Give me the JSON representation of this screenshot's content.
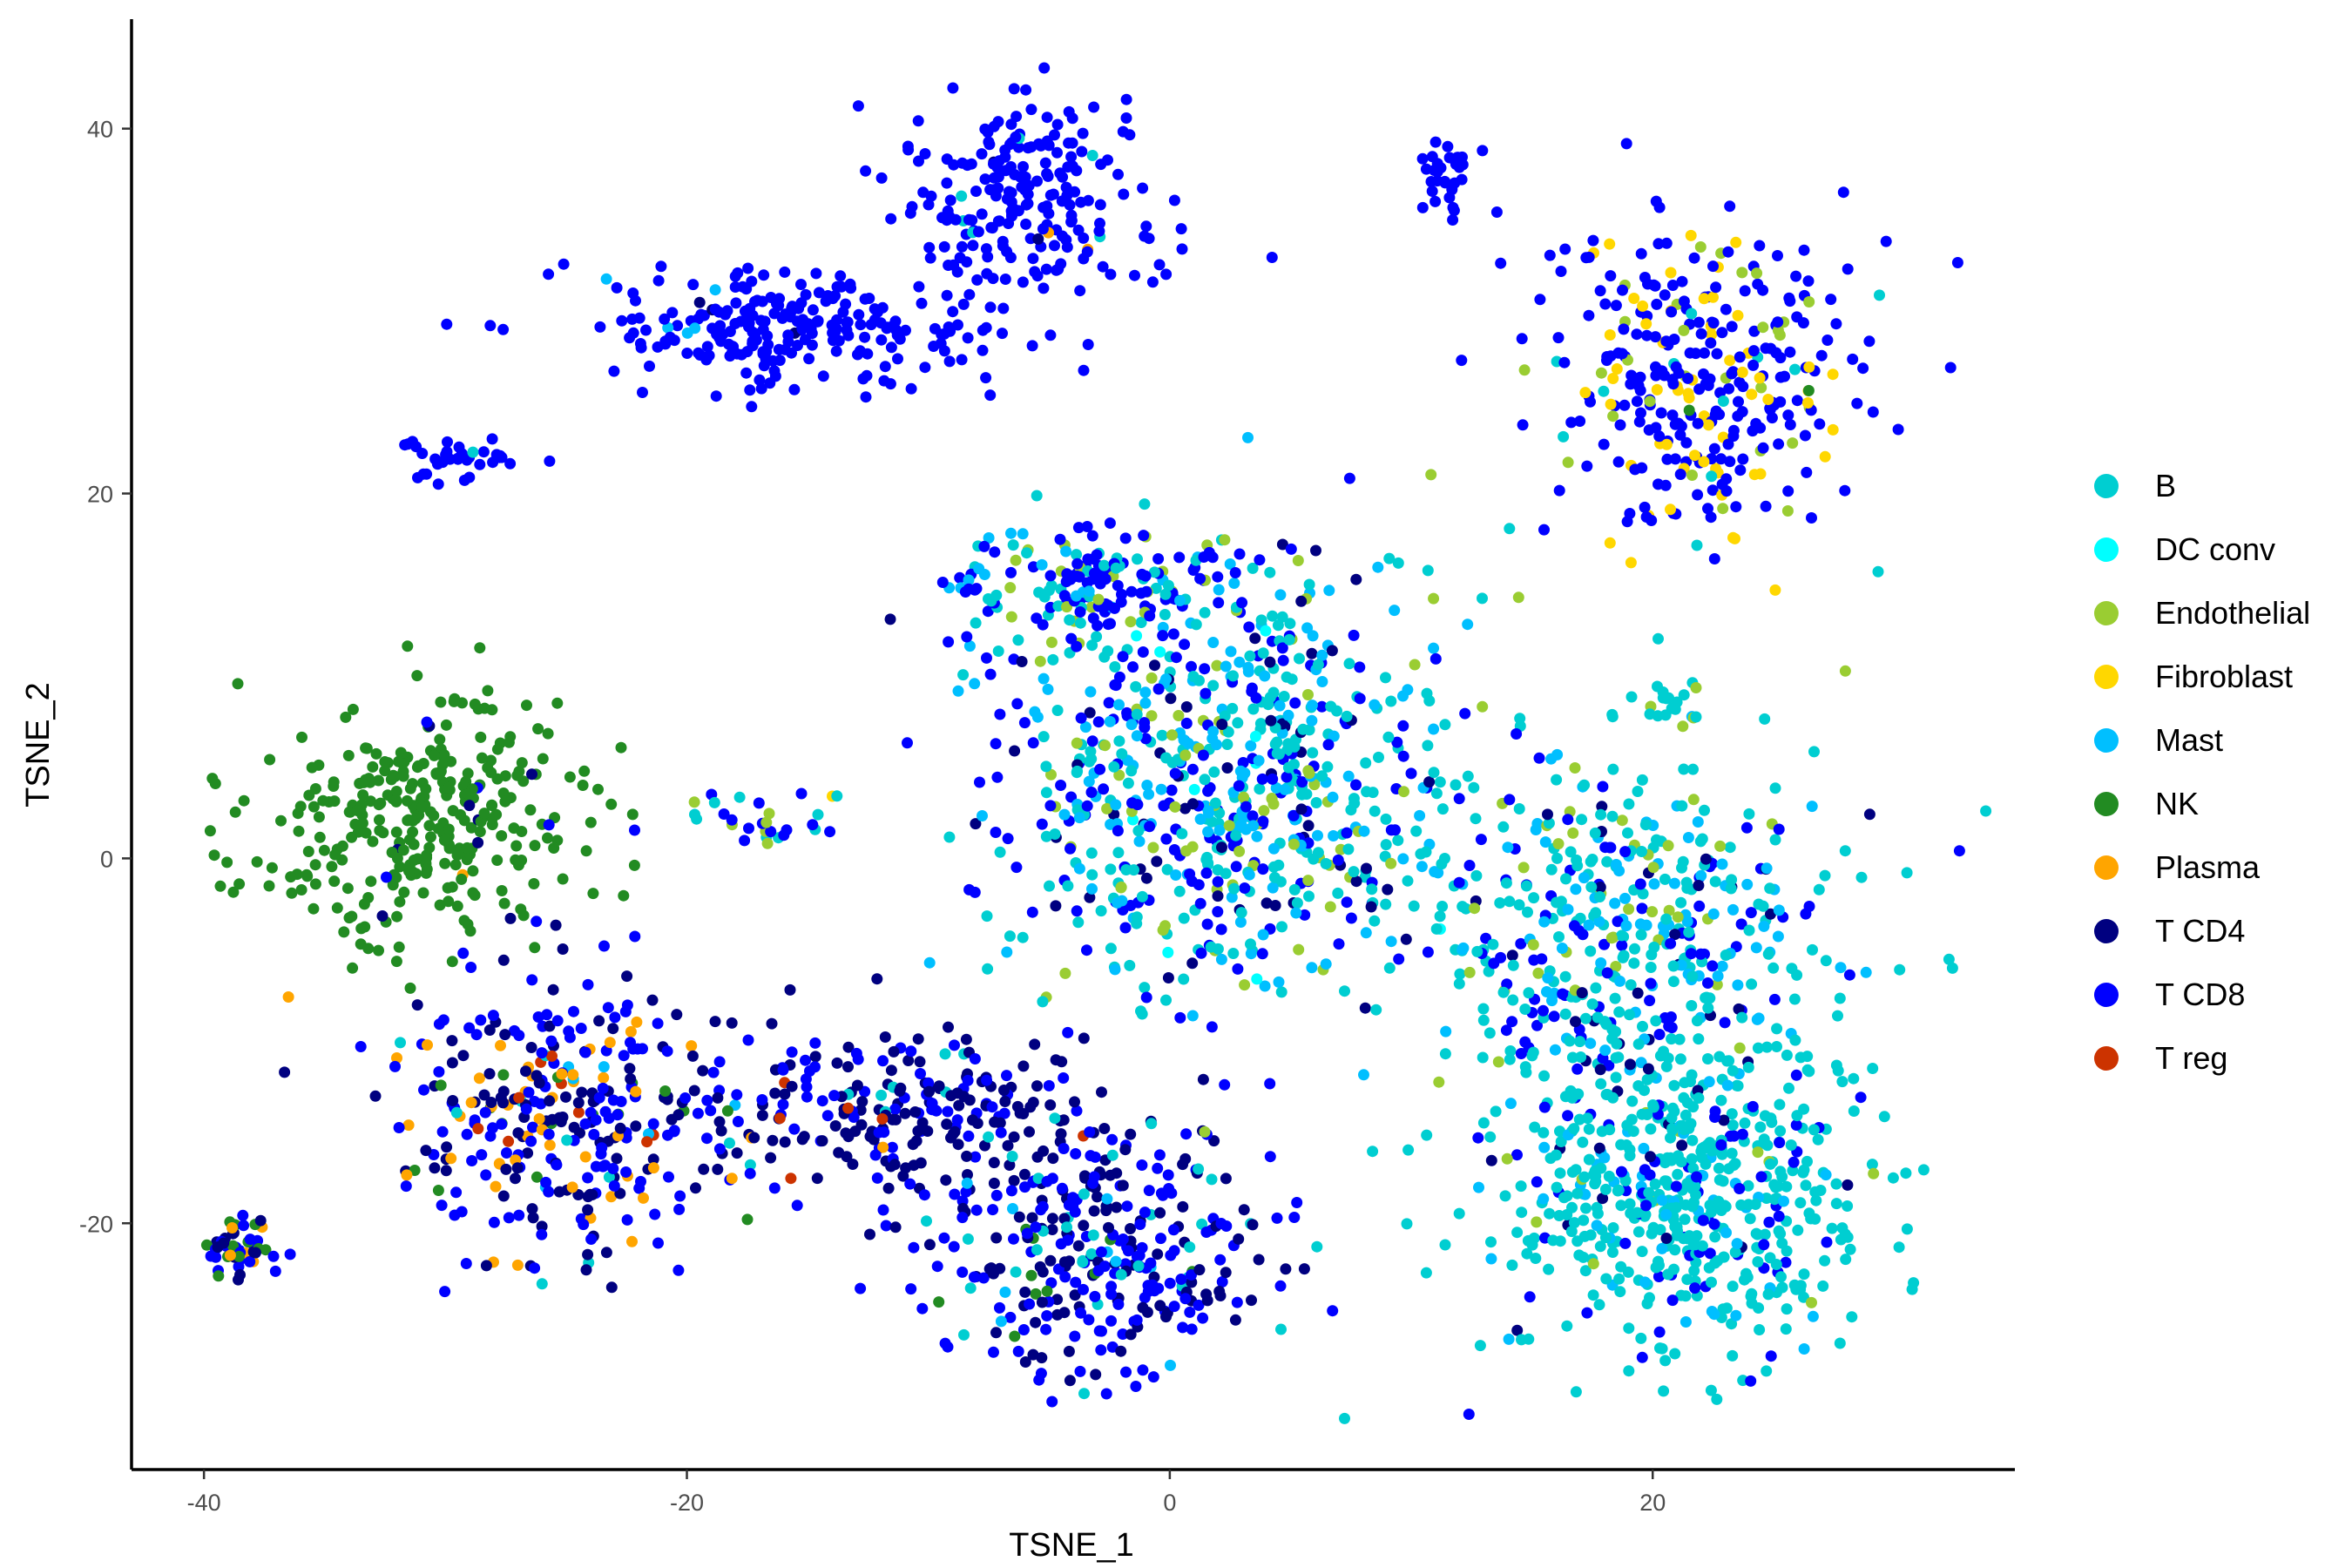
{
  "chart_data": {
    "type": "scatter",
    "title": "",
    "xlabel": "TSNE_1",
    "ylabel": "TSNE_2",
    "xlim": [
      -43,
      35
    ],
    "ylim": [
      -33.5,
      46
    ],
    "x_ticks": [
      -40,
      -20,
      0,
      20
    ],
    "y_ticks": [
      -20,
      0,
      20,
      40
    ],
    "x_tick_labels": [
      "-40",
      "-20",
      "0",
      "20"
    ],
    "y_tick_labels": [
      "-20",
      "0",
      "20",
      "40"
    ],
    "grid": false,
    "legend_position": "right",
    "legend": [
      {
        "name": "B",
        "color": "#00CED1"
      },
      {
        "name": "DC conv",
        "color": "#00FFFF"
      },
      {
        "name": "Endothelial",
        "color": "#9ACD32"
      },
      {
        "name": "Fibroblast",
        "color": "#FFD700"
      },
      {
        "name": "Mast",
        "color": "#00BFFF"
      },
      {
        "name": "NK",
        "color": "#228B22"
      },
      {
        "name": "Plasma",
        "color": "#FFA500"
      },
      {
        "name": "T CD4",
        "color": "#000080"
      },
      {
        "name": "T CD8",
        "color": "#0000FF"
      },
      {
        "name": "T reg",
        "color": "#CC3300"
      }
    ],
    "clusters": [
      {
        "x": -6,
        "y": 36,
        "sx": 2.5,
        "sy": 3,
        "n": 220,
        "mix": {
          "T CD8": 0.95,
          "T CD4": 0.02,
          "B": 0.02,
          "Plasma": 0.01
        }
      },
      {
        "x": -16,
        "y": 29,
        "sx": 4,
        "sy": 1.6,
        "n": 240,
        "mix": {
          "T CD8": 0.96,
          "T CD4": 0.02,
          "Mast": 0.02
        }
      },
      {
        "x": -29.5,
        "y": 22,
        "sx": 1.2,
        "sy": 0.8,
        "n": 35,
        "mix": {
          "T CD8": 0.9,
          "Fibroblast": 0.05,
          "B": 0.05
        }
      },
      {
        "x": 11.5,
        "y": 37.5,
        "sx": 0.6,
        "sy": 1,
        "n": 35,
        "mix": {
          "T CD8": 1.0
        }
      },
      {
        "x": 22,
        "y": 26,
        "sx": 3.4,
        "sy": 4.5,
        "n": 340,
        "mix": {
          "T CD8": 0.74,
          "Fibroblast": 0.18,
          "Endothelial": 0.05,
          "B": 0.02,
          "NK": 0.01
        }
      },
      {
        "x": -31,
        "y": 2,
        "sx": 3.5,
        "sy": 3.5,
        "n": 330,
        "mix": {
          "NK": 0.95,
          "T CD4": 0.02,
          "T CD8": 0.02,
          "Plasma": 0.01
        }
      },
      {
        "x": -25,
        "y": -14,
        "sx": 3.5,
        "sy": 4,
        "n": 330,
        "mix": {
          "T CD8": 0.45,
          "T CD4": 0.3,
          "Plasma": 0.1,
          "NK": 0.05,
          "T reg": 0.04,
          "B": 0.03,
          "Mast": 0.03
        }
      },
      {
        "x": -38.5,
        "y": -21,
        "sx": 0.8,
        "sy": 0.9,
        "n": 50,
        "mix": {
          "T CD8": 0.5,
          "T CD4": 0.3,
          "NK": 0.15,
          "Plasma": 0.05
        }
      },
      {
        "x": -11,
        "y": -14,
        "sx": 5,
        "sy": 2.5,
        "n": 260,
        "mix": {
          "T CD4": 0.55,
          "T CD8": 0.38,
          "B": 0.03,
          "Plasma": 0.02,
          "T reg": 0.02
        }
      },
      {
        "x": -3,
        "y": -22,
        "sx": 3.6,
        "sy": 3.2,
        "n": 320,
        "mix": {
          "T CD8": 0.5,
          "T CD4": 0.35,
          "B": 0.08,
          "Mast": 0.05,
          "NK": 0.02
        }
      },
      {
        "x": 2,
        "y": 4,
        "sx": 5,
        "sy": 6,
        "n": 750,
        "mix": {
          "B": 0.35,
          "Mast": 0.23,
          "T CD8": 0.23,
          "T CD4": 0.08,
          "Endothelial": 0.1,
          "DC conv": 0.01
        }
      },
      {
        "x": 19,
        "y": -4,
        "sx": 4.5,
        "sy": 5,
        "n": 450,
        "mix": {
          "B": 0.45,
          "Mast": 0.22,
          "T CD8": 0.2,
          "Endothelial": 0.08,
          "T CD4": 0.05
        }
      },
      {
        "x": 21,
        "y": -18,
        "sx": 4,
        "sy": 4.5,
        "n": 600,
        "mix": {
          "B": 0.75,
          "T CD8": 0.12,
          "Mast": 0.08,
          "Endothelial": 0.03,
          "T CD4": 0.02
        }
      },
      {
        "x": -17,
        "y": 2,
        "sx": 1.8,
        "sy": 0.8,
        "n": 30,
        "mix": {
          "T CD8": 0.6,
          "B": 0.25,
          "Endothelial": 0.1,
          "Fibroblast": 0.05
        }
      },
      {
        "x": -3,
        "y": 15,
        "sx": 3,
        "sy": 1.8,
        "n": 170,
        "mix": {
          "T CD8": 0.65,
          "B": 0.15,
          "Endothelial": 0.12,
          "Mast": 0.08
        }
      },
      {
        "x": 21,
        "y": 8.5,
        "sx": 0.8,
        "sy": 0.8,
        "n": 20,
        "mix": {
          "B": 0.6,
          "Endothelial": 0.2,
          "Mast": 0.2
        }
      }
    ]
  },
  "colors": {
    "axis": "#000000",
    "tick_label": "#4d4d4d"
  }
}
